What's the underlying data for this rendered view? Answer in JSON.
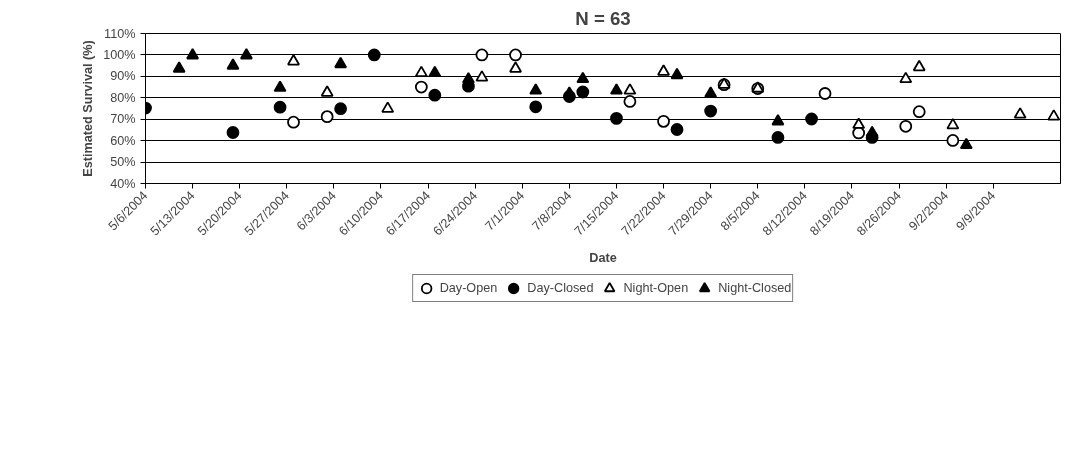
{
  "chart_data": {
    "type": "scatter",
    "title": "N = 63",
    "xlabel": "Date",
    "ylabel": "Estimated Survival (%)",
    "xlim": [
      "2004-05-06",
      "2004-09-19"
    ],
    "xticks": [
      {
        "value": "2004-05-06",
        "label": "5/6/2004"
      },
      {
        "value": "2004-05-13",
        "label": "5/13/2004"
      },
      {
        "value": "2004-05-20",
        "label": "5/20/2004"
      },
      {
        "value": "2004-05-27",
        "label": "5/27/2004"
      },
      {
        "value": "2004-06-03",
        "label": "6/3/2004"
      },
      {
        "value": "2004-06-10",
        "label": "6/10/2004"
      },
      {
        "value": "2004-06-17",
        "label": "6/17/2004"
      },
      {
        "value": "2004-06-24",
        "label": "6/24/2004"
      },
      {
        "value": "2004-07-01",
        "label": "7/1/2004"
      },
      {
        "value": "2004-07-08",
        "label": "7/8/2004"
      },
      {
        "value": "2004-07-15",
        "label": "7/15/2004"
      },
      {
        "value": "2004-07-22",
        "label": "7/22/2004"
      },
      {
        "value": "2004-07-29",
        "label": "7/29/2004"
      },
      {
        "value": "2004-08-05",
        "label": "8/5/2004"
      },
      {
        "value": "2004-08-12",
        "label": "8/12/2004"
      },
      {
        "value": "2004-08-19",
        "label": "8/19/2004"
      },
      {
        "value": "2004-08-26",
        "label": "8/26/2004"
      },
      {
        "value": "2004-09-02",
        "label": "9/2/2004"
      },
      {
        "value": "2004-09-09",
        "label": "9/9/2004"
      }
    ],
    "ylim": [
      40,
      110
    ],
    "yticks": [
      {
        "value": 40,
        "label": "40%"
      },
      {
        "value": 50,
        "label": "50%"
      },
      {
        "value": 60,
        "label": "60%"
      },
      {
        "value": 70,
        "label": "70%"
      },
      {
        "value": 80,
        "label": "80%"
      },
      {
        "value": 90,
        "label": "90%"
      },
      {
        "value": 100,
        "label": "100%"
      },
      {
        "value": 110,
        "label": "110%"
      }
    ],
    "grid": "y",
    "legend": "bottom",
    "series": [
      {
        "name": "Day-Open",
        "color": "#ffffff",
        "marker": "circle",
        "x": [
          "2004-05-28",
          "2004-06-02",
          "2004-06-16",
          "2004-06-25",
          "2004-06-30",
          "2004-07-17",
          "2004-07-22",
          "2004-07-31",
          "2004-08-05",
          "2004-08-15",
          "2004-08-20",
          "2004-08-27",
          "2004-08-29",
          "2004-09-03"
        ],
        "values": [
          68.6,
          71.2,
          85,
          100,
          100,
          78.3,
          69,
          86.1,
          84.3,
          82,
          63.6,
          66.7,
          73.5,
          60.1
        ]
      },
      {
        "name": "Day-Closed",
        "color": "#000000",
        "marker": "circle",
        "x": [
          "2004-05-06",
          "2004-05-19",
          "2004-05-26",
          "2004-06-04",
          "2004-06-09",
          "2004-06-18",
          "2004-06-23",
          "2004-07-03",
          "2004-07-08",
          "2004-07-10",
          "2004-07-15",
          "2004-07-24",
          "2004-07-29",
          "2004-08-08",
          "2004-08-13",
          "2004-08-22"
        ],
        "values": [
          75.2,
          63.8,
          75.6,
          74.9,
          100,
          81.2,
          85.4,
          75.8,
          80.6,
          82.7,
          70.4,
          65.2,
          73.8,
          61.5,
          70.1,
          61.5
        ]
      },
      {
        "name": "Night-Open",
        "color": "#ffffff",
        "marker": "triangle",
        "x": [
          "2004-05-28",
          "2004-06-02",
          "2004-06-11",
          "2004-06-16",
          "2004-06-25",
          "2004-06-30",
          "2004-07-17",
          "2004-07-22",
          "2004-07-31",
          "2004-08-05",
          "2004-08-20",
          "2004-08-27",
          "2004-08-29",
          "2004-09-03",
          "2004-09-13",
          "2004-09-18"
        ],
        "values": [
          97,
          82.4,
          74.9,
          91.6,
          89.5,
          93.6,
          83.4,
          92.2,
          86.1,
          84.3,
          67.4,
          88.8,
          94.3,
          67.2,
          72.2,
          71.3
        ]
      },
      {
        "name": "Night-Closed",
        "color": "#000000",
        "marker": "triangle",
        "x": [
          "2004-05-11",
          "2004-05-13",
          "2004-05-19",
          "2004-05-21",
          "2004-05-26",
          "2004-06-04",
          "2004-06-18",
          "2004-06-23",
          "2004-07-03",
          "2004-07-08",
          "2004-07-10",
          "2004-07-15",
          "2004-07-24",
          "2004-07-29",
          "2004-08-08",
          "2004-08-22",
          "2004-09-05"
        ],
        "values": [
          93.6,
          99.8,
          95,
          99.8,
          84.7,
          95.7,
          91.6,
          88.6,
          83.4,
          82,
          88.8,
          83.4,
          90.6,
          82,
          69,
          63.6,
          58
        ]
      }
    ]
  }
}
